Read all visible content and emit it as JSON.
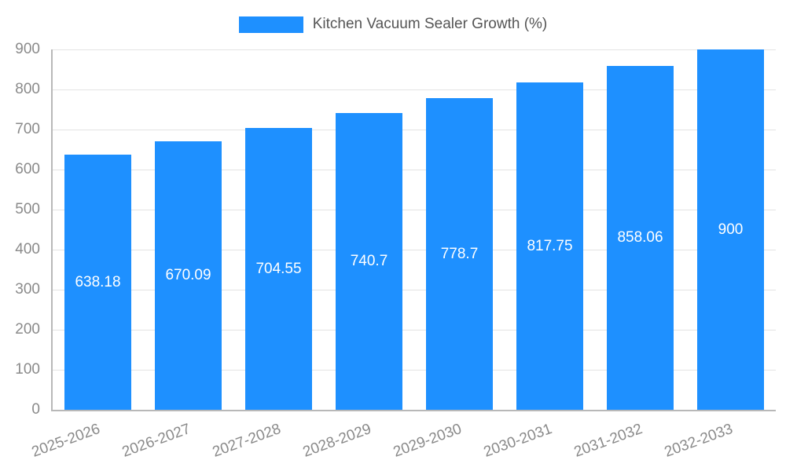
{
  "legend": {
    "label": "Kitchen Vacuum Sealer Growth (%)"
  },
  "chart_data": {
    "type": "bar",
    "title": "Kitchen Vacuum Sealer Growth (%)",
    "categories": [
      "2025-2026",
      "2026-2027",
      "2027-2028",
      "2028-2029",
      "2029-2030",
      "2030-2031",
      "2031-2032",
      "2032-2033"
    ],
    "values": [
      638.18,
      670.09,
      704.55,
      740.7,
      778.7,
      817.75,
      858.06,
      900
    ],
    "value_labels": [
      "638.18",
      "670.09",
      "704.55",
      "740.7",
      "778.7",
      "817.75",
      "858.06",
      "900"
    ],
    "xlabel": "",
    "ylabel": "",
    "ylim": [
      0,
      900
    ],
    "yticks": [
      0,
      100,
      200,
      300,
      400,
      500,
      600,
      700,
      800,
      900
    ],
    "grid": true,
    "legend_position": "top-center",
    "bar_color": "#1e90ff",
    "value_label_color": "#ffffff",
    "axis_text_color": "#8a8a8a",
    "grid_color": "#e3e3e3",
    "axis_line_color": "#b8b8b8",
    "background_color": "#ffffff"
  }
}
